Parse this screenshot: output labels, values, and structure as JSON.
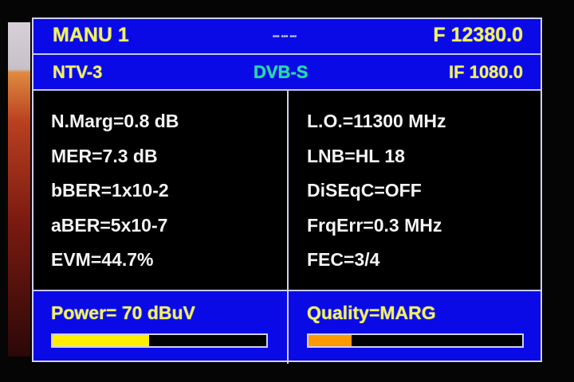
{
  "header": {
    "mode": "MANU 1",
    "indicator": "▪▪▪ ▪▪▪ ▪▪▪",
    "frequency": "F 12380.0"
  },
  "subheader": {
    "channel": "NTV-3",
    "standard": "DVB-S",
    "if_freq": "IF 1080.0"
  },
  "left_measurements": [
    "N.Marg=0.8 dB",
    "MER=7.3 dB",
    "bBER=1x10-2",
    "aBER=5x10-7",
    "EVM=44.7%"
  ],
  "right_measurements": [
    "L.O.=11300 MHz",
    "LNB=HL 18",
    "DiSEqC=OFF",
    "FrqErr=0.3 MHz",
    "FEC=3/4"
  ],
  "power": {
    "label": "Power=  70 dBuV",
    "level_percent": 45,
    "color": "#ffee00"
  },
  "quality": {
    "label": "Quality=MARG",
    "level_percent": 20,
    "color": "#ff9900"
  },
  "colors": {
    "panel_blue": "#0a0ae6",
    "text_yellow": "#f2f25a",
    "standard_green": "#20e0a0"
  }
}
